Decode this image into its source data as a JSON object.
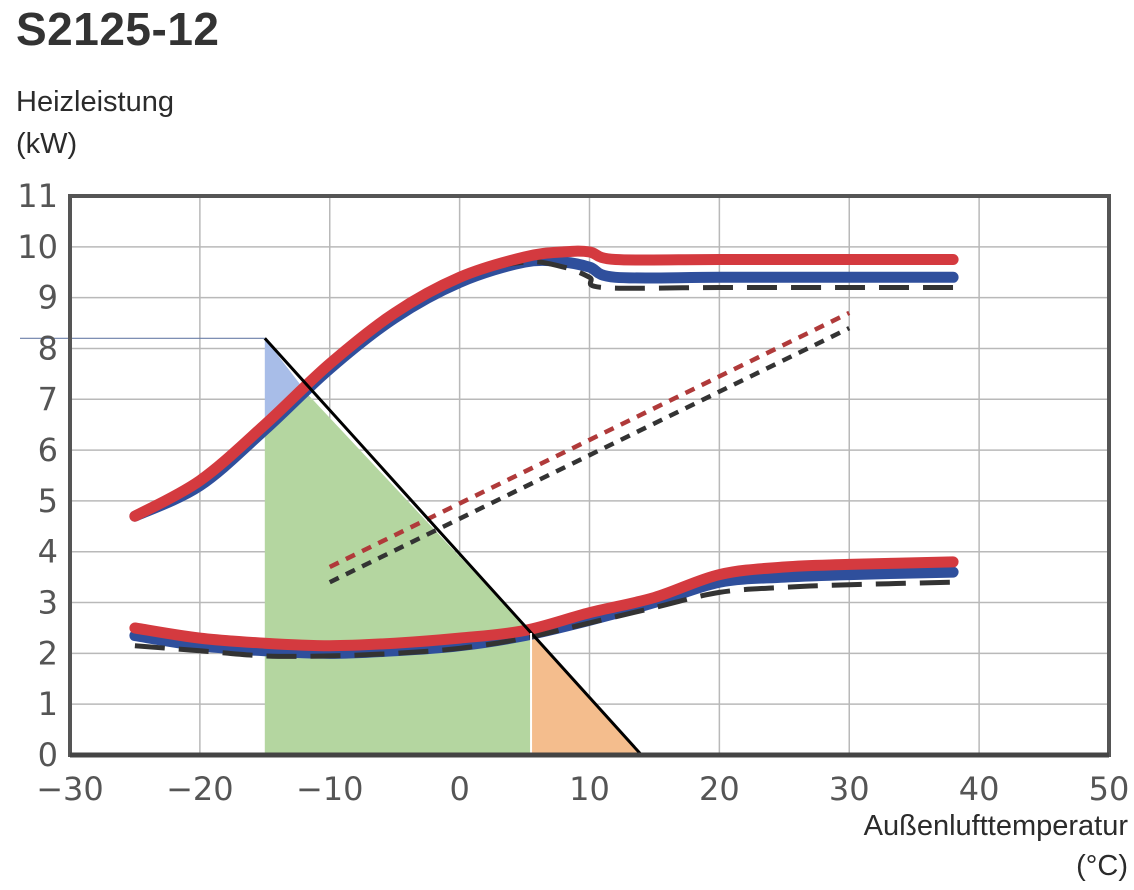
{
  "chart_data": {
    "type": "line",
    "title": "S2125-12",
    "ylabel_lines": [
      "Heizleistung",
      "(kW)"
    ],
    "xlabel_lines": [
      "Außenlufttemperatur",
      "(°C)"
    ],
    "xlim": [
      -30,
      50
    ],
    "ylim": [
      0,
      11
    ],
    "xticks": [
      "−30",
      "−20",
      "−10",
      "0",
      "10",
      "20",
      "30",
      "40",
      "50"
    ],
    "xtick_values": [
      -30,
      -20,
      -10,
      0,
      10,
      20,
      30,
      40,
      50
    ],
    "yticks": [
      "0",
      "1",
      "2",
      "3",
      "4",
      "5",
      "6",
      "7",
      "8",
      "9",
      "10",
      "11"
    ],
    "ytick_values": [
      0,
      1,
      2,
      3,
      4,
      5,
      6,
      7,
      8,
      9,
      10,
      11
    ],
    "grid": true,
    "series": [
      {
        "id": "max-blue",
        "style": "solid",
        "color": "#2f4f9c",
        "x": [
          -25,
          -20,
          -15,
          -10,
          -5,
          0,
          5,
          8,
          10,
          12,
          20,
          30,
          38
        ],
        "y": [
          4.7,
          5.3,
          6.4,
          7.6,
          8.6,
          9.3,
          9.7,
          9.7,
          9.6,
          9.4,
          9.4,
          9.4,
          9.4
        ]
      },
      {
        "id": "max-black",
        "style": "dashed",
        "color": "#333333",
        "x": [
          -25,
          -20,
          -15,
          -10,
          -5,
          0,
          5,
          8,
          10,
          11,
          20,
          30,
          38
        ],
        "y": [
          4.75,
          5.4,
          6.5,
          7.7,
          8.7,
          9.4,
          9.7,
          9.6,
          9.4,
          9.2,
          9.2,
          9.2,
          9.2
        ]
      },
      {
        "id": "max-red",
        "style": "solid",
        "color": "#d43a3f",
        "x": [
          -25,
          -20,
          -15,
          -10,
          -5,
          0,
          5,
          8,
          10,
          12,
          20,
          30,
          38
        ],
        "y": [
          4.7,
          5.4,
          6.5,
          7.7,
          8.7,
          9.4,
          9.8,
          9.9,
          9.9,
          9.75,
          9.75,
          9.75,
          9.75
        ]
      },
      {
        "id": "min-blue",
        "style": "solid",
        "color": "#2f4f9c",
        "x": [
          -25,
          -20,
          -15,
          -10,
          -5,
          0,
          5,
          10,
          15,
          20,
          25,
          30,
          38
        ],
        "y": [
          2.35,
          2.15,
          2.05,
          2.0,
          2.05,
          2.15,
          2.35,
          2.65,
          3.0,
          3.4,
          3.5,
          3.55,
          3.6
        ]
      },
      {
        "id": "min-black",
        "style": "dashed",
        "color": "#333333",
        "x": [
          -25,
          -20,
          -15,
          -10,
          -5,
          0,
          5,
          10,
          15,
          20,
          25,
          30,
          38
        ],
        "y": [
          2.15,
          2.05,
          1.95,
          1.95,
          2.0,
          2.1,
          2.3,
          2.6,
          2.9,
          3.2,
          3.3,
          3.35,
          3.4
        ]
      },
      {
        "id": "min-red",
        "style": "solid",
        "color": "#d43a3f",
        "x": [
          -25,
          -20,
          -15,
          -10,
          -5,
          0,
          5,
          10,
          15,
          20,
          25,
          30,
          38
        ],
        "y": [
          2.5,
          2.3,
          2.2,
          2.15,
          2.2,
          2.3,
          2.45,
          2.8,
          3.1,
          3.55,
          3.7,
          3.75,
          3.8
        ]
      },
      {
        "id": "mid-red",
        "style": "dotted",
        "color": "#b03a3a",
        "x": [
          -10,
          30
        ],
        "y": [
          3.7,
          8.7
        ]
      },
      {
        "id": "mid-black",
        "style": "dotted",
        "color": "#333333",
        "x": [
          -10,
          30
        ],
        "y": [
          3.4,
          8.4
        ]
      }
    ],
    "overlays": [
      {
        "id": "region-blue",
        "color": "#a8bde8",
        "points": [
          [
            -15,
            8.2
          ],
          [
            -11.7,
            7.1
          ],
          [
            -15,
            6.5
          ]
        ]
      },
      {
        "id": "region-green",
        "color": "#b4d6a0",
        "points": [
          [
            -15,
            6.5
          ],
          [
            -11.7,
            7.1
          ],
          [
            5.5,
            2.4
          ],
          [
            5.5,
            0
          ],
          [
            -15,
            0
          ]
        ]
      },
      {
        "id": "region-orange",
        "color": "#f4bd8d",
        "points": [
          [
            5.5,
            2.4
          ],
          [
            14,
            0
          ],
          [
            5.5,
            0
          ]
        ]
      }
    ]
  }
}
